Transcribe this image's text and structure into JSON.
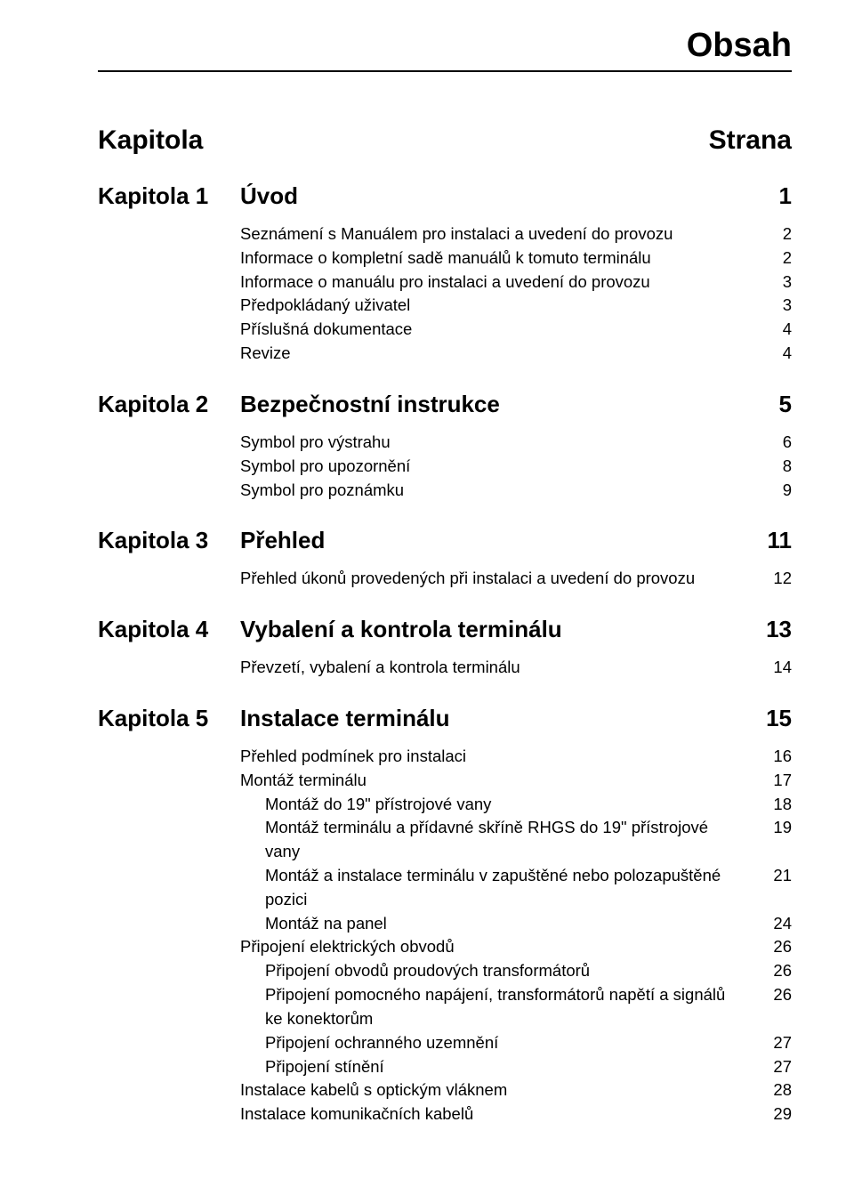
{
  "page_title": "Obsah",
  "column_left": "Kapitola",
  "column_right": "Strana",
  "chapters": [
    {
      "prefix": "Kapitola 1",
      "title": "Úvod",
      "page": "1",
      "entries": [
        {
          "label": "Seznámení s Manuálem pro instalaci a uvedení do provozu",
          "page": "2",
          "indent": 0
        },
        {
          "label": "Informace o kompletní sadě manuálů k tomuto terminálu",
          "page": "2",
          "indent": 0
        },
        {
          "label": "Informace o manuálu pro instalaci a uvedení do provozu",
          "page": "3",
          "indent": 0
        },
        {
          "label": "Předpokládaný uživatel",
          "page": "3",
          "indent": 0
        },
        {
          "label": "Příslušná dokumentace",
          "page": "4",
          "indent": 0
        },
        {
          "label": "Revize",
          "page": "4",
          "indent": 0
        }
      ]
    },
    {
      "prefix": "Kapitola 2",
      "title": "Bezpečnostní instrukce",
      "page": "5",
      "entries": [
        {
          "label": "Symbol pro výstrahu",
          "page": "6",
          "indent": 0
        },
        {
          "label": "Symbol pro upozornění",
          "page": "8",
          "indent": 0
        },
        {
          "label": "Symbol pro poznámku",
          "page": "9",
          "indent": 0
        }
      ]
    },
    {
      "prefix": "Kapitola 3",
      "title": "Přehled",
      "page": "11",
      "entries": [
        {
          "label": "Přehled úkonů provedených při instalaci a uvedení do provozu",
          "page": "12",
          "indent": 0
        }
      ]
    },
    {
      "prefix": "Kapitola 4",
      "title": "Vybalení a kontrola terminálu",
      "page": "13",
      "entries": [
        {
          "label": "Převzetí, vybalení a kontrola terminálu",
          "page": "14",
          "indent": 0
        }
      ]
    },
    {
      "prefix": "Kapitola 5",
      "title": "Instalace terminálu",
      "page": "15",
      "entries": [
        {
          "label": "Přehled podmínek pro instalaci",
          "page": "16",
          "indent": 0
        },
        {
          "label": "Montáž terminálu",
          "page": "17",
          "indent": 0
        },
        {
          "label": "Montáž do 19\" přístrojové vany",
          "page": "18",
          "indent": 1
        },
        {
          "label": "Montáž terminálu a přídavné skříně RHGS do 19\" přístrojové vany",
          "page": "19",
          "indent": 1
        },
        {
          "label": "Montáž a instalace terminálu v zapuštěné nebo polozapuštěné pozici",
          "page": "21",
          "indent": 1
        },
        {
          "label": "Montáž na panel",
          "page": "24",
          "indent": 1
        },
        {
          "label": "Připojení elektrických obvodů",
          "page": "26",
          "indent": 0
        },
        {
          "label": "Připojení obvodů proudových transformátorů",
          "page": "26",
          "indent": 1
        },
        {
          "label": "Připojení pomocného napájení, transformátorů napětí a signálů ke konektorům",
          "page": "26",
          "indent": 1
        },
        {
          "label": "Připojení ochranného uzemnění",
          "page": "27",
          "indent": 1
        },
        {
          "label": "Připojení stínění",
          "page": "27",
          "indent": 1
        },
        {
          "label": "Instalace kabelů s optickým vláknem",
          "page": "28",
          "indent": 0
        },
        {
          "label": "Instalace komunikačních kabelů",
          "page": "29",
          "indent": 0
        }
      ]
    }
  ]
}
